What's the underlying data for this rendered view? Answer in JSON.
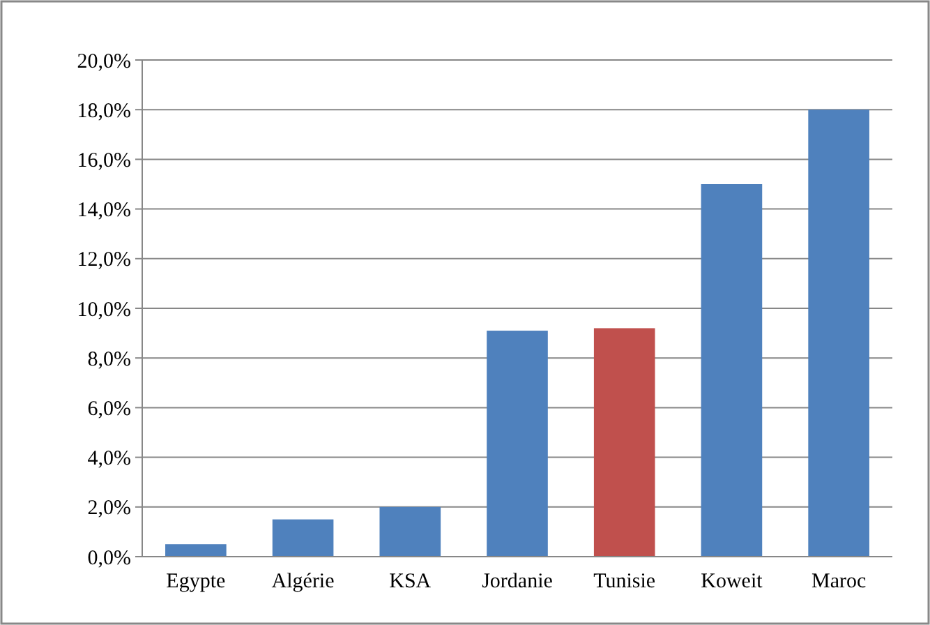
{
  "chart_data": {
    "type": "bar",
    "categories": [
      "Egypte",
      "Algérie",
      "KSA",
      "Jordanie",
      "Tunisie",
      "Koweit",
      "Maroc"
    ],
    "values": [
      0.5,
      1.5,
      2.0,
      9.1,
      9.2,
      15.0,
      18.0
    ],
    "colors": [
      "#4f81bd",
      "#4f81bd",
      "#4f81bd",
      "#4f81bd",
      "#c0504d",
      "#4f81bd",
      "#4f81bd"
    ],
    "ylim": [
      0,
      20
    ],
    "yticks": [
      {
        "value": 0,
        "label": "0,0%"
      },
      {
        "value": 2,
        "label": "2,0%"
      },
      {
        "value": 4,
        "label": "4,0%"
      },
      {
        "value": 6,
        "label": "6,0%"
      },
      {
        "value": 8,
        "label": "8,0%"
      },
      {
        "value": 10,
        "label": "10,0%"
      },
      {
        "value": 12,
        "label": "12,0%"
      },
      {
        "value": 14,
        "label": "14,0%"
      },
      {
        "value": 16,
        "label": "16,0%"
      },
      {
        "value": 18,
        "label": "18,0%"
      },
      {
        "value": 20,
        "label": "20,0%"
      }
    ],
    "grid": "y"
  }
}
